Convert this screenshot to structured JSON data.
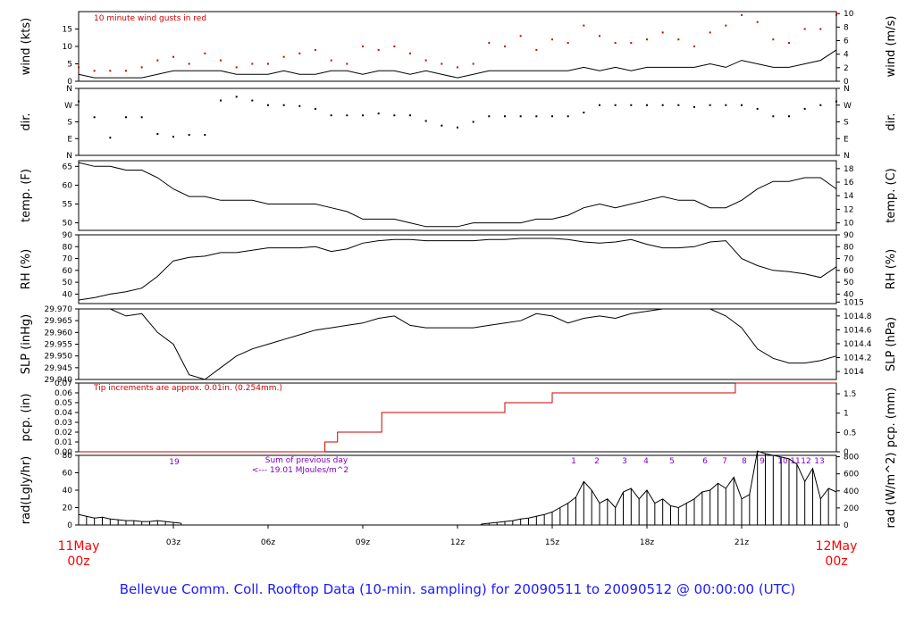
{
  "footer": "Bellevue Comm. Coll. Rooftop Data (10-min. sampling) for 20090511  to  20090512 @ 00:00:00  (UTC)",
  "colors": {
    "axis": "#000000",
    "precip": "#cc0000",
    "annot": "#8000c0",
    "dates": "#ff0000",
    "footer": "#1a1aff"
  },
  "time_axis": {
    "range_hours": [
      0,
      24
    ],
    "ticks": [
      {
        "hour": 3,
        "label": "03z"
      },
      {
        "hour": 6,
        "label": "06z"
      },
      {
        "hour": 9,
        "label": "09z"
      },
      {
        "hour": 12,
        "label": "12z"
      },
      {
        "hour": 15,
        "label": "15z"
      },
      {
        "hour": 18,
        "label": "18z"
      },
      {
        "hour": 21,
        "label": "21z"
      }
    ],
    "start_date": "11May",
    "start_time": "00z",
    "end_date": "12May",
    "end_time": "00z"
  },
  "chart_data": [
    {
      "type": "line",
      "ylabel": "wind (kts)",
      "ylabel_right": "wind (m/s)",
      "annotation": "10  minute wind gusts in red",
      "ylim": [
        0,
        20
      ],
      "yticks": [
        0,
        5,
        10,
        15
      ],
      "yticks_right": [
        0,
        2,
        4,
        6,
        8,
        10
      ],
      "series": [
        {
          "style": "line",
          "color": "#000000",
          "x": [
            0,
            0.5,
            1,
            1.5,
            2,
            2.5,
            3,
            3.5,
            4,
            4.5,
            5,
            5.5,
            6,
            6.5,
            7,
            7.5,
            8,
            8.5,
            9,
            9.5,
            10,
            10.5,
            11,
            11.5,
            12,
            12.5,
            13,
            13.5,
            14,
            14.5,
            15,
            15.5,
            16,
            16.5,
            17,
            17.5,
            18,
            18.5,
            19,
            19.5,
            20,
            20.5,
            21,
            21.5,
            22,
            22.5,
            23,
            23.5,
            24
          ],
          "y": [
            2,
            1,
            1,
            1,
            1,
            2,
            3,
            3,
            3,
            3,
            2,
            2,
            2,
            3,
            2,
            2,
            3,
            3,
            2,
            3,
            3,
            2,
            3,
            2,
            1,
            2,
            3,
            3,
            3,
            3,
            3,
            3,
            4,
            3,
            4,
            3,
            4,
            4,
            4,
            4,
            5,
            4,
            6,
            5,
            4,
            4,
            5,
            6,
            9
          ]
        },
        {
          "style": "points",
          "color": "#cc0000",
          "x": [
            0,
            0.5,
            1,
            1.5,
            2,
            2.5,
            3,
            3.5,
            4,
            4.5,
            5,
            5.5,
            6,
            6.5,
            7,
            7.5,
            8,
            8.5,
            9,
            9.5,
            10,
            10.5,
            11,
            11.5,
            12,
            12.5,
            13,
            13.5,
            14,
            14.5,
            15,
            15.5,
            16,
            16.5,
            17,
            17.5,
            18,
            18.5,
            19,
            19.5,
            20,
            20.5,
            21,
            21.5,
            22,
            22.5,
            23,
            23.5,
            24
          ],
          "y": [
            4,
            3,
            3,
            3,
            4,
            6,
            7,
            5,
            8,
            6,
            4,
            5,
            5,
            7,
            8,
            9,
            6,
            5,
            10,
            9,
            10,
            8,
            6,
            5,
            4,
            5,
            11,
            10,
            13,
            9,
            12,
            11,
            16,
            13,
            11,
            11,
            12,
            14,
            12,
            10,
            14,
            16,
            19,
            17,
            12,
            11,
            15,
            15,
            19
          ]
        }
      ]
    },
    {
      "type": "scatter",
      "ylabel": "dir.",
      "ylabel_right": "dir.",
      "ylim": [
        0,
        360
      ],
      "yticks": [
        0,
        90,
        180,
        270,
        360
      ],
      "ytick_labels": [
        "N",
        "E",
        "S",
        "W",
        "N"
      ],
      "yticks_right": [
        0,
        90,
        180,
        270,
        360
      ],
      "ytick_labels_right": [
        "N",
        "E",
        "S",
        "W",
        "N"
      ],
      "series": [
        {
          "style": "points",
          "color": "#000000",
          "x": [
            0,
            0.5,
            1,
            1.5,
            2,
            2.5,
            3,
            3.5,
            4,
            4.5,
            5,
            5.5,
            6,
            6.5,
            7,
            7.5,
            8,
            8.5,
            9,
            9.5,
            10,
            10.5,
            11,
            11.5,
            12,
            12.5,
            13,
            13.5,
            14,
            14.5,
            15,
            15.5,
            16,
            16.5,
            17,
            17.5,
            18,
            18.5,
            19,
            19.5,
            20,
            20.5,
            21,
            21.5,
            22,
            22.5,
            23,
            23.5,
            24
          ],
          "y": [
            290,
            205,
            95,
            205,
            205,
            115,
            100,
            110,
            110,
            295,
            315,
            295,
            270,
            270,
            265,
            250,
            215,
            215,
            215,
            225,
            215,
            215,
            185,
            160,
            150,
            180,
            210,
            210,
            210,
            210,
            210,
            210,
            230,
            270,
            270,
            270,
            270,
            270,
            270,
            260,
            270,
            270,
            270,
            250,
            210,
            210,
            250,
            270,
            290
          ]
        }
      ]
    },
    {
      "type": "line",
      "ylabel": "temp. (F)",
      "ylabel_right": "temp. (C)",
      "ylim": [
        48,
        66.5
      ],
      "yticks": [
        50,
        55,
        60,
        65
      ],
      "yticks_right": [
        10,
        12,
        14,
        16,
        18
      ],
      "series": [
        {
          "style": "line",
          "color": "#000000",
          "x": [
            0,
            0.5,
            1,
            1.5,
            2,
            2.5,
            3,
            3.5,
            4,
            4.5,
            5,
            5.5,
            6,
            6.5,
            7,
            7.5,
            8,
            8.5,
            9,
            9.5,
            10,
            10.5,
            11,
            11.5,
            12,
            12.5,
            13,
            13.5,
            14,
            14.5,
            15,
            15.5,
            16,
            16.5,
            17,
            17.5,
            18,
            18.5,
            19,
            19.5,
            20,
            20.5,
            21,
            21.5,
            22,
            22.5,
            23,
            23.5,
            24
          ],
          "y": [
            66,
            65,
            65,
            64,
            64,
            62,
            59,
            57,
            57,
            56,
            56,
            56,
            55,
            55,
            55,
            55,
            54,
            53,
            51,
            51,
            51,
            50,
            49,
            49,
            49,
            50,
            50,
            50,
            50,
            51,
            51,
            52,
            54,
            55,
            54,
            55,
            56,
            57,
            56,
            56,
            54,
            54,
            56,
            59,
            61,
            61,
            62,
            62,
            59
          ]
        }
      ]
    },
    {
      "type": "line",
      "ylabel": "RH (%)",
      "ylabel_right": "RH (%)",
      "ylim": [
        32,
        90
      ],
      "yticks": [
        40,
        50,
        60,
        70,
        80,
        90
      ],
      "yticks_right": [
        40,
        50,
        60,
        70,
        80,
        90
      ],
      "series": [
        {
          "style": "line",
          "color": "#000000",
          "x": [
            0,
            0.5,
            1,
            1.5,
            2,
            2.5,
            3,
            3.5,
            4,
            4.5,
            5,
            5.5,
            6,
            6.5,
            7,
            7.5,
            8,
            8.5,
            9,
            9.5,
            10,
            10.5,
            11,
            11.5,
            12,
            12.5,
            13,
            13.5,
            14,
            14.5,
            15,
            15.5,
            16,
            16.5,
            17,
            17.5,
            18,
            18.5,
            19,
            19.5,
            20,
            20.5,
            21,
            21.5,
            22,
            22.5,
            23,
            23.5,
            24
          ],
          "y": [
            35,
            37,
            40,
            42,
            45,
            55,
            68,
            71,
            72,
            75,
            75,
            77,
            79,
            79,
            79,
            80,
            76,
            78,
            83,
            85,
            86,
            86,
            85,
            85,
            85,
            85,
            86,
            86,
            87,
            87,
            87,
            86,
            84,
            83,
            84,
            86,
            82,
            79,
            79,
            80,
            84,
            85,
            70,
            64,
            60,
            59,
            57,
            54,
            63
          ]
        }
      ]
    },
    {
      "type": "line",
      "ylabel": "SLP (inHg)",
      "ylabel_right": "SLP (hPa)",
      "ylim": [
        29.94,
        29.97
      ],
      "yticks": [
        29.94,
        29.945,
        29.95,
        29.955,
        29.96,
        29.965,
        29.97
      ],
      "ytick_labels": [
        "29.940",
        "29.945",
        "29.950",
        "29.955",
        "29.960",
        "29.965",
        "29.970"
      ],
      "yticks_right": [
        1014,
        1014.2,
        1014.4,
        1014.6,
        1014.8,
        1015
      ],
      "ytick_labels_right": [
        "1014",
        "1014.2",
        "1014.4",
        "1014.6",
        "1014.8",
        "1015"
      ],
      "series": [
        {
          "style": "line",
          "color": "#000000",
          "x": [
            0,
            0.5,
            1,
            1.5,
            2,
            2.5,
            3,
            3.5,
            4,
            4.5,
            5,
            5.5,
            6,
            6.5,
            7,
            7.5,
            8,
            8.5,
            9,
            9.5,
            10,
            10.5,
            11,
            11.5,
            12,
            12.5,
            13,
            13.5,
            14,
            14.5,
            15,
            15.5,
            16,
            16.5,
            17,
            17.5,
            18,
            18.5,
            19,
            19.5,
            20,
            20.5,
            21,
            21.5,
            22,
            22.5,
            23,
            23.5,
            24
          ],
          "y": [
            29.97,
            29.97,
            29.97,
            29.967,
            29.968,
            29.96,
            29.955,
            29.942,
            29.94,
            29.945,
            29.95,
            29.953,
            29.955,
            29.957,
            29.959,
            29.961,
            29.962,
            29.963,
            29.964,
            29.966,
            29.967,
            29.963,
            29.962,
            29.962,
            29.962,
            29.962,
            29.963,
            29.964,
            29.965,
            29.968,
            29.967,
            29.964,
            29.966,
            29.967,
            29.966,
            29.968,
            29.969,
            29.97,
            29.97,
            29.97,
            29.97,
            29.967,
            29.962,
            29.953,
            29.949,
            29.947,
            29.947,
            29.948,
            29.95
          ]
        }
      ]
    },
    {
      "type": "line",
      "ylabel": "pcp. (in)",
      "ylabel_right": "pcp. (mm)",
      "annotation": "Tip increments are approx. 0.01in. (0.254mm.)",
      "ylim": [
        0,
        0.07
      ],
      "yticks": [
        0,
        0.01,
        0.02,
        0.03,
        0.04,
        0.05,
        0.06,
        0.07
      ],
      "ytick_labels": [
        "0.00",
        "0.01",
        "0.02",
        "0.03",
        "0.04",
        "0.05",
        "0.06",
        "0.07"
      ],
      "yticks_right": [
        0,
        0.5,
        1,
        1.5
      ],
      "ytick_labels_right": [
        "0",
        "0.5",
        "1",
        "1.5"
      ],
      "series": [
        {
          "style": "step",
          "color": "#cc0000",
          "x": [
            0,
            7.5,
            7.8,
            8.2,
            9.0,
            9.6,
            12.5,
            13.5,
            14.0,
            14.8,
            15.0,
            20.5,
            20.8,
            24
          ],
          "y": [
            0,
            0,
            0.01,
            0.02,
            0.02,
            0.04,
            0.04,
            0.05,
            0.05,
            0.05,
            0.06,
            0.06,
            0.07,
            0.07
          ]
        }
      ]
    },
    {
      "type": "area",
      "ylabel": "rad(Lgly/hr)",
      "ylabel_right": "rad (W/m^2)",
      "ylim": [
        0,
        80
      ],
      "yticks": [
        0,
        20,
        40,
        60,
        80
      ],
      "yticks_right": [
        0,
        200,
        400,
        600,
        800
      ],
      "annotations": [
        "19",
        "Sum of previous day",
        "<--- 19.01 MJoules/m^2",
        "1",
        "2",
        "3",
        "4",
        "5",
        "6",
        "7",
        "8",
        "9",
        "10",
        "11",
        "12",
        "13"
      ],
      "series": [
        {
          "style": "impulses",
          "color": "#000000",
          "x": [
            0,
            0.25,
            0.5,
            0.75,
            1,
            1.25,
            1.5,
            1.75,
            2,
            2.25,
            2.5,
            2.75,
            3,
            3.25,
            12.75,
            13,
            13.25,
            13.5,
            13.75,
            14,
            14.25,
            14.5,
            14.75,
            15,
            15.25,
            15.5,
            15.75,
            16,
            16.25,
            16.5,
            16.75,
            17,
            17.25,
            17.5,
            17.75,
            18,
            18.25,
            18.5,
            18.75,
            19,
            19.25,
            19.5,
            19.75,
            20,
            20.25,
            20.5,
            20.75,
            21,
            21.25,
            21.5,
            21.75,
            22,
            22.25,
            22.5,
            22.75,
            23,
            23.25,
            23.5,
            23.75,
            24
          ],
          "y": [
            12,
            10,
            8,
            9,
            7,
            6,
            5,
            5,
            4,
            4,
            5,
            4,
            3,
            2,
            1,
            2,
            3,
            4,
            5,
            7,
            8,
            10,
            12,
            15,
            20,
            25,
            32,
            50,
            40,
            25,
            30,
            20,
            38,
            42,
            30,
            40,
            25,
            30,
            22,
            20,
            25,
            30,
            38,
            40,
            48,
            42,
            55,
            30,
            35,
            85,
            82,
            80,
            78,
            76,
            70,
            50,
            65,
            30,
            42,
            38
          ]
        }
      ]
    }
  ]
}
